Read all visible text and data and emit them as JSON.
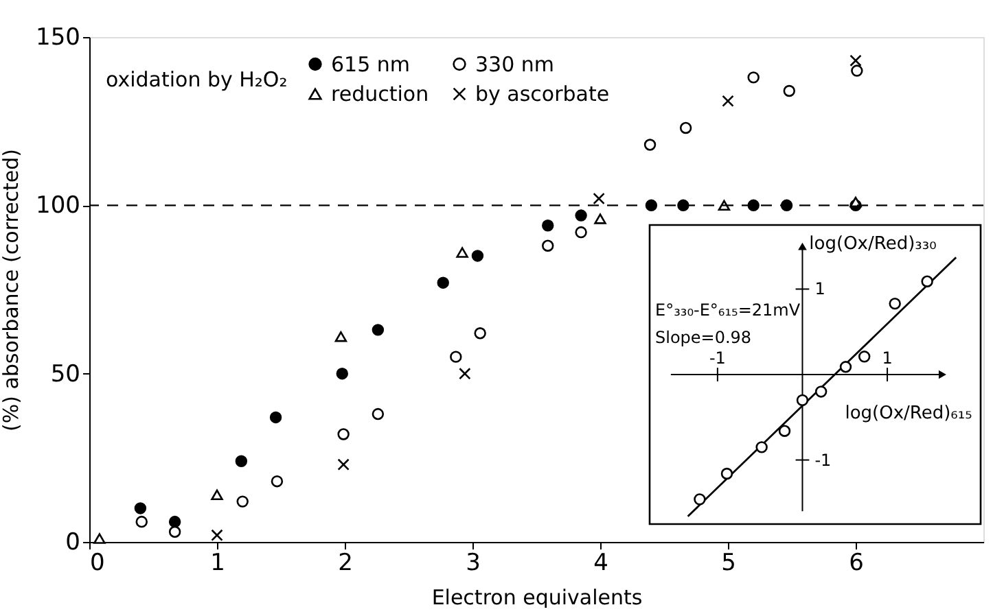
{
  "chart_data": [
    {
      "type": "scatter",
      "xlabel": "Electron equivalents",
      "ylabel": "(%) absorbance (corrected)",
      "legend_title": "oxidation by H₂O₂",
      "legend": "top left",
      "xlim": [
        0,
        7
      ],
      "xticks": [
        0,
        1,
        2,
        3,
        4,
        5,
        6
      ],
      "ylim": [
        0,
        150
      ],
      "yticks": [
        0,
        50,
        100,
        150
      ],
      "grid": false,
      "ref_lines": [
        {
          "axis": "y",
          "value": 100,
          "line_style": "dashed",
          "color": "#000000"
        }
      ],
      "series": [
        {
          "name": "615 nm",
          "color": "#000000",
          "marker": "circle",
          "x": [
            0.4,
            0.67,
            1.19,
            1.46,
            1.98,
            2.26,
            2.77,
            3.04,
            3.59,
            3.85,
            4.4,
            4.65,
            5.2,
            5.46,
            6.0
          ],
          "values": [
            10,
            6,
            24,
            37,
            50,
            63,
            77,
            85,
            94,
            97,
            100,
            100,
            100,
            100,
            100
          ]
        },
        {
          "name": "reduction",
          "color": "#ffffff",
          "marker": "triangle",
          "x": [
            0.08,
            1.0,
            1.97,
            2.92,
            4.0,
            4.97,
            6.0
          ],
          "values": [
            1,
            14,
            61,
            86,
            96,
            100,
            101
          ]
        },
        {
          "name": "330 nm",
          "color": "#ffffff",
          "marker": "circle",
          "x": [
            0.41,
            0.67,
            1.2,
            1.47,
            1.99,
            2.26,
            2.87,
            3.06,
            3.59,
            3.85,
            4.39,
            4.67,
            5.2,
            5.48,
            6.01
          ],
          "values": [
            6,
            3,
            12,
            18,
            32,
            38,
            55,
            62,
            88,
            92,
            118,
            123,
            138,
            134,
            140
          ]
        },
        {
          "name": "by ascorbate",
          "color": "#000000",
          "marker": "cross",
          "x": [
            1.0,
            1.99,
            2.94,
            3.99,
            5.0,
            6.0
          ],
          "values": [
            2,
            23,
            50,
            102,
            131,
            143
          ]
        }
      ]
    },
    {
      "type": "scatter",
      "xlabel": "log(Ox/Red)₆₁₅",
      "ylabel": "log(Ox/Red)₃₃₀",
      "annotations": [
        "E°₃₃₀-E°₆₁₅=21mV",
        "Slope=0.98"
      ],
      "xlim": [
        -1.8,
        2.1
      ],
      "ylim": [
        -1.75,
        1.75
      ],
      "xticks": [
        -1,
        1
      ],
      "yticks": [
        -1,
        1
      ],
      "series": [
        {
          "color": "#ffffff",
          "marker": "circle",
          "x": [
            -1.21,
            -0.89,
            -0.48,
            -0.21,
            0.0,
            0.22,
            0.51,
            0.73,
            1.09,
            1.47
          ],
          "values": [
            -1.46,
            -1.16,
            -0.85,
            -0.66,
            -0.3,
            -0.2,
            0.09,
            0.21,
            0.83,
            1.09
          ]
        },
        {
          "type": "line",
          "color": "#000000",
          "x": [
            -1.35,
            1.81
          ],
          "values": [
            -1.66,
            1.37
          ]
        }
      ]
    }
  ]
}
